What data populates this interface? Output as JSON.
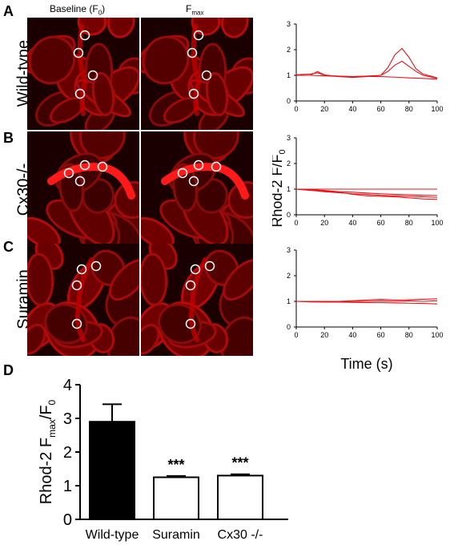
{
  "panels": {
    "A": "A",
    "B": "B",
    "C": "C",
    "D": "D"
  },
  "columns": {
    "baseline": "Baseline (F",
    "baseline_sub": "0",
    "baseline_close": ")",
    "fmax": "F",
    "fmax_sub": "max"
  },
  "rows": [
    {
      "label": "Wild-type"
    },
    {
      "label": "Cx30-/-"
    },
    {
      "label": "Suramin"
    }
  ],
  "trace_plots": {
    "ylabel_main": "Rhod-2 F/F",
    "ylabel_sub": "0",
    "xlabel": "Time (s)",
    "xticks": [
      "0",
      "20",
      "40",
      "60",
      "80",
      "100"
    ],
    "yticks": [
      "0",
      "1",
      "2",
      "3"
    ],
    "color": "#e8141a"
  },
  "chart_data": [
    {
      "type": "line",
      "panel": "A",
      "xlim": [
        0,
        100
      ],
      "ylim": [
        0,
        3
      ],
      "series": [
        {
          "x": [
            0,
            10,
            15,
            20,
            30,
            40,
            50,
            60,
            65,
            70,
            75,
            80,
            85,
            90,
            100
          ],
          "values": [
            1.0,
            1.0,
            1.15,
            1.02,
            0.95,
            0.92,
            0.95,
            1.0,
            1.3,
            1.8,
            2.05,
            1.7,
            1.25,
            1.05,
            0.9
          ]
        },
        {
          "x": [
            0,
            10,
            15,
            20,
            30,
            40,
            50,
            60,
            65,
            70,
            75,
            80,
            85,
            90,
            100
          ],
          "values": [
            1.02,
            1.05,
            1.1,
            1.0,
            0.97,
            0.95,
            0.97,
            1.0,
            1.15,
            1.4,
            1.55,
            1.35,
            1.15,
            1.0,
            0.88
          ]
        },
        {
          "x": [
            0,
            10,
            20,
            30,
            40,
            50,
            60,
            70,
            80,
            90,
            100
          ],
          "values": [
            1.0,
            1.0,
            0.98,
            0.96,
            0.95,
            0.96,
            0.95,
            0.93,
            0.9,
            0.88,
            0.85
          ]
        }
      ]
    },
    {
      "type": "line",
      "panel": "B",
      "xlim": [
        0,
        100
      ],
      "ylim": [
        0,
        3
      ],
      "series": [
        {
          "x": [
            0,
            10,
            20,
            30,
            40,
            50,
            60,
            70,
            80,
            90,
            100
          ],
          "values": [
            1.0,
            1.0,
            1.0,
            1.0,
            1.0,
            1.0,
            1.0,
            1.0,
            1.0,
            1.0,
            1.0
          ]
        },
        {
          "x": [
            0,
            10,
            20,
            30,
            40,
            50,
            60,
            70,
            80,
            90,
            100
          ],
          "values": [
            1.0,
            0.98,
            0.95,
            0.9,
            0.88,
            0.85,
            0.82,
            0.8,
            0.78,
            0.76,
            0.75
          ]
        },
        {
          "x": [
            0,
            10,
            20,
            30,
            40,
            50,
            60,
            70,
            80,
            90,
            100
          ],
          "values": [
            1.0,
            0.96,
            0.9,
            0.86,
            0.82,
            0.8,
            0.76,
            0.74,
            0.72,
            0.7,
            0.68
          ]
        },
        {
          "x": [
            0,
            10,
            20,
            30,
            40,
            50,
            60,
            70,
            80,
            90,
            100
          ],
          "values": [
            1.0,
            0.95,
            0.92,
            0.88,
            0.8,
            0.74,
            0.72,
            0.7,
            0.66,
            0.62,
            0.6
          ]
        }
      ]
    },
    {
      "type": "line",
      "panel": "C",
      "xlim": [
        0,
        100
      ],
      "ylim": [
        0,
        3
      ],
      "series": [
        {
          "x": [
            0,
            10,
            20,
            30,
            40,
            50,
            60,
            70,
            80,
            90,
            100
          ],
          "values": [
            1.0,
            1.0,
            1.0,
            1.0,
            1.02,
            1.05,
            1.08,
            1.05,
            1.06,
            1.08,
            1.1
          ]
        },
        {
          "x": [
            0,
            10,
            20,
            30,
            40,
            50,
            60,
            70,
            80,
            90,
            100
          ],
          "values": [
            1.0,
            0.99,
            1.0,
            0.98,
            1.0,
            1.0,
            1.02,
            1.0,
            1.02,
            1.0,
            1.02
          ]
        },
        {
          "x": [
            0,
            10,
            20,
            30,
            40,
            50,
            60,
            70,
            80,
            90,
            100
          ],
          "values": [
            1.0,
            0.98,
            0.97,
            0.97,
            0.96,
            0.95,
            0.95,
            0.94,
            0.93,
            0.92,
            0.9
          ]
        }
      ]
    },
    {
      "type": "bar",
      "panel": "D",
      "ylabel_main": "Rhod-2 F",
      "ylabel_sub1": "max",
      "ylabel_mid": "/F",
      "ylabel_sub2": "0",
      "categories": [
        "Wild-type",
        "Suramin",
        "Cx30 -/-"
      ],
      "values": [
        2.9,
        1.25,
        1.3
      ],
      "errors": [
        0.52,
        0.04,
        0.04
      ],
      "fills": [
        "#000000",
        "#ffffff",
        "#ffffff"
      ],
      "annotations": [
        "",
        "***",
        "***"
      ],
      "ylim": [
        0,
        4
      ],
      "yticks": [
        "0",
        "1",
        "2",
        "3",
        "4"
      ]
    }
  ]
}
